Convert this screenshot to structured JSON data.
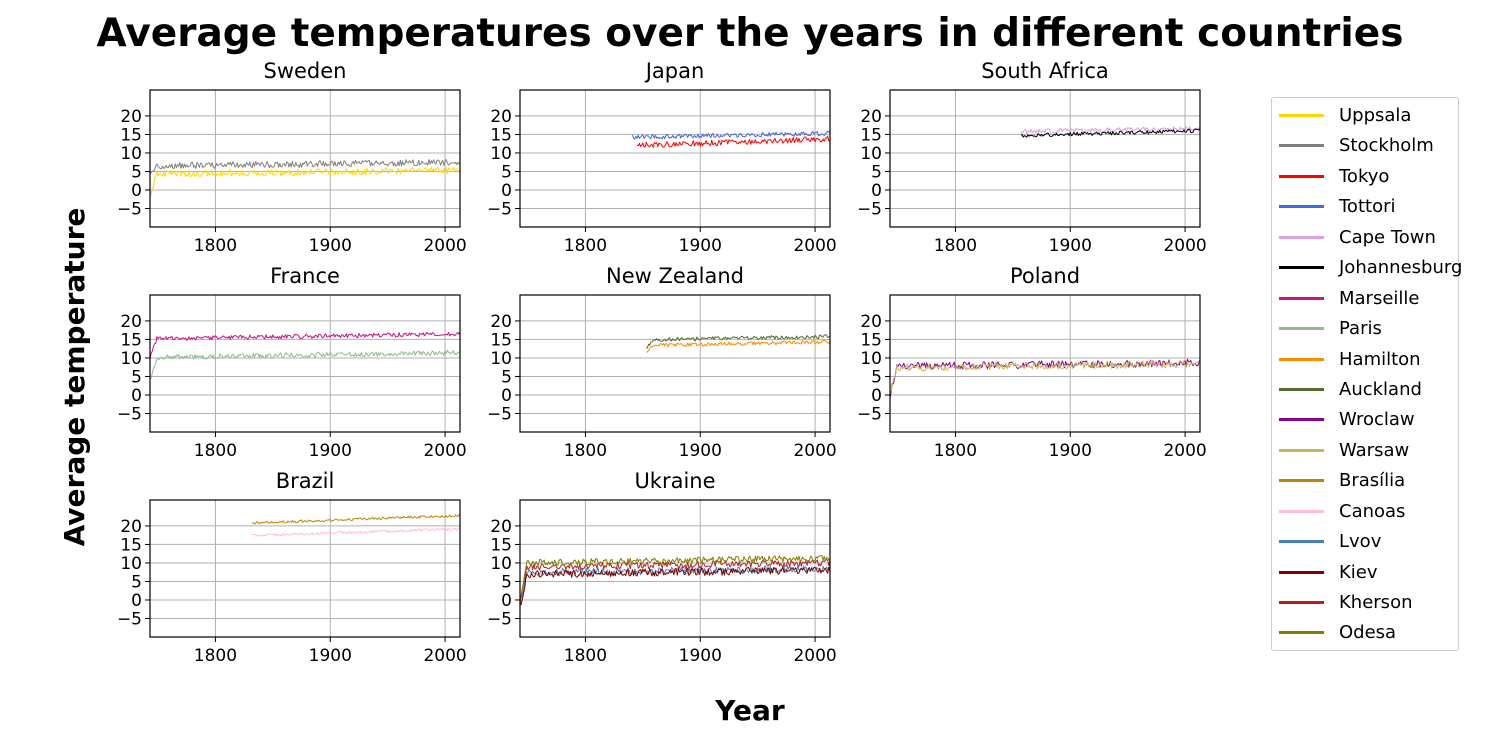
{
  "figure": {
    "title": "Average temperatures over the years in different countries",
    "xlabel": "Year",
    "ylabel": "Average temperature"
  },
  "chart_data": {
    "type": "line",
    "title": "Average temperatures over the years in different countries",
    "xlabel": "Year",
    "ylabel": "Average temperature",
    "grid": true,
    "legend_position": "right",
    "xlim": [
      1743,
      2013
    ],
    "ylim": [
      -10,
      27
    ],
    "xticks": [
      1800,
      1900,
      2000
    ],
    "yticks": [
      -5,
      0,
      5,
      10,
      15,
      20
    ],
    "panels": [
      {
        "title": "Sweden",
        "series": [
          {
            "name": "Stockholm",
            "color": "#808080",
            "start": 1743,
            "end": 2013,
            "baseline": 6.5,
            "amplitude": 0.9,
            "trend": 1.0,
            "dip": -3
          },
          {
            "name": "Uppsala",
            "color": "#ffd700",
            "start": 1743,
            "end": 2013,
            "baseline": 4.3,
            "amplitude": 0.9,
            "trend": 1.0,
            "dip": -6
          }
        ]
      },
      {
        "title": "Japan",
        "series": [
          {
            "name": "Tottori",
            "color": "#4169e1",
            "start": 1841,
            "end": 2013,
            "baseline": 14.3,
            "amplitude": 0.6,
            "trend": 1.0,
            "dip": 0
          },
          {
            "name": "Tokyo",
            "color": "#ff0000",
            "start": 1845,
            "end": 2013,
            "baseline": 12.0,
            "amplitude": 0.8,
            "trend": 1.8,
            "dip": 0
          }
        ]
      },
      {
        "title": "South Africa",
        "series": [
          {
            "name": "Cape Town",
            "color": "#dda0dd",
            "start": 1857,
            "end": 2013,
            "baseline": 15.8,
            "amplitude": 0.6,
            "trend": 0.8,
            "dip": 0
          },
          {
            "name": "Johannesburg",
            "color": "#000000",
            "start": 1857,
            "end": 2013,
            "baseline": 14.7,
            "amplitude": 0.5,
            "trend": 1.3,
            "dip": 0
          }
        ]
      },
      {
        "title": "France",
        "series": [
          {
            "name": "Marseille",
            "color": "#c71585",
            "start": 1743,
            "end": 2013,
            "baseline": 15.2,
            "amplitude": 0.6,
            "trend": 1.3,
            "dip": -5
          },
          {
            "name": "Paris",
            "color": "#8fbc8f",
            "start": 1743,
            "end": 2013,
            "baseline": 10.2,
            "amplitude": 0.7,
            "trend": 1.2,
            "dip": -6
          }
        ]
      },
      {
        "title": "New Zealand",
        "series": [
          {
            "name": "Auckland",
            "color": "#556b2f",
            "start": 1853,
            "end": 2013,
            "baseline": 14.9,
            "amplitude": 0.5,
            "trend": 0.9,
            "dip": -2
          },
          {
            "name": "Hamilton",
            "color": "#ff8c00",
            "start": 1853,
            "end": 2013,
            "baseline": 13.4,
            "amplitude": 0.5,
            "trend": 0.9,
            "dip": -2
          }
        ]
      },
      {
        "title": "Poland",
        "series": [
          {
            "name": "Wroclaw",
            "color": "#8b008b",
            "start": 1743,
            "end": 2013,
            "baseline": 7.7,
            "amplitude": 1.0,
            "trend": 1.0,
            "dip": -8
          },
          {
            "name": "Warsaw",
            "color": "#c8b560",
            "start": 1743,
            "end": 2013,
            "baseline": 7.4,
            "amplitude": 1.0,
            "trend": 1.0,
            "dip": -8
          }
        ]
      },
      {
        "title": "Brazil",
        "series": [
          {
            "name": "Brasília",
            "color": "#b8860b",
            "start": 1832,
            "end": 2013,
            "baseline": 20.8,
            "amplitude": 0.35,
            "trend": 2.0,
            "dip": 0
          },
          {
            "name": "Canoas",
            "color": "#ffc0cb",
            "start": 1832,
            "end": 2013,
            "baseline": 17.4,
            "amplitude": 0.35,
            "trend": 1.8,
            "dip": 0
          }
        ]
      },
      {
        "title": "Ukraine",
        "series": [
          {
            "name": "Lvov",
            "color": "#4682b4",
            "start": 1743,
            "end": 2013,
            "baseline": 7.4,
            "amplitude": 1.0,
            "trend": 1.0,
            "dip": -9
          },
          {
            "name": "Kiev",
            "color": "#800000",
            "start": 1743,
            "end": 2013,
            "baseline": 6.9,
            "amplitude": 1.0,
            "trend": 1.2,
            "dip": -9
          },
          {
            "name": "Kherson",
            "color": "#b22222",
            "start": 1743,
            "end": 2013,
            "baseline": 8.9,
            "amplitude": 0.9,
            "trend": 1.2,
            "dip": -10
          },
          {
            "name": "Odesa",
            "color": "#808000",
            "start": 1743,
            "end": 2013,
            "baseline": 10.0,
            "amplitude": 0.9,
            "trend": 1.3,
            "dip": -11
          }
        ]
      }
    ],
    "legend": [
      {
        "name": "Uppsala",
        "color": "#ffd700"
      },
      {
        "name": "Stockholm",
        "color": "#808080"
      },
      {
        "name": "Tokyo",
        "color": "#ff0000"
      },
      {
        "name": "Tottori",
        "color": "#4169e1"
      },
      {
        "name": "Cape Town",
        "color": "#dda0dd"
      },
      {
        "name": "Johannesburg",
        "color": "#000000"
      },
      {
        "name": "Marseille",
        "color": "#c71585"
      },
      {
        "name": "Paris",
        "color": "#8fbc8f"
      },
      {
        "name": "Hamilton",
        "color": "#ff8c00"
      },
      {
        "name": "Auckland",
        "color": "#556b2f"
      },
      {
        "name": "Wroclaw",
        "color": "#8b008b"
      },
      {
        "name": "Warsaw",
        "color": "#c8b560"
      },
      {
        "name": "Brasília",
        "color": "#b8860b"
      },
      {
        "name": "Canoas",
        "color": "#ffc0cb"
      },
      {
        "name": "Lvov",
        "color": "#4682b4"
      },
      {
        "name": "Kiev",
        "color": "#800000"
      },
      {
        "name": "Kherson",
        "color": "#b22222"
      },
      {
        "name": "Odesa",
        "color": "#808000"
      }
    ]
  }
}
